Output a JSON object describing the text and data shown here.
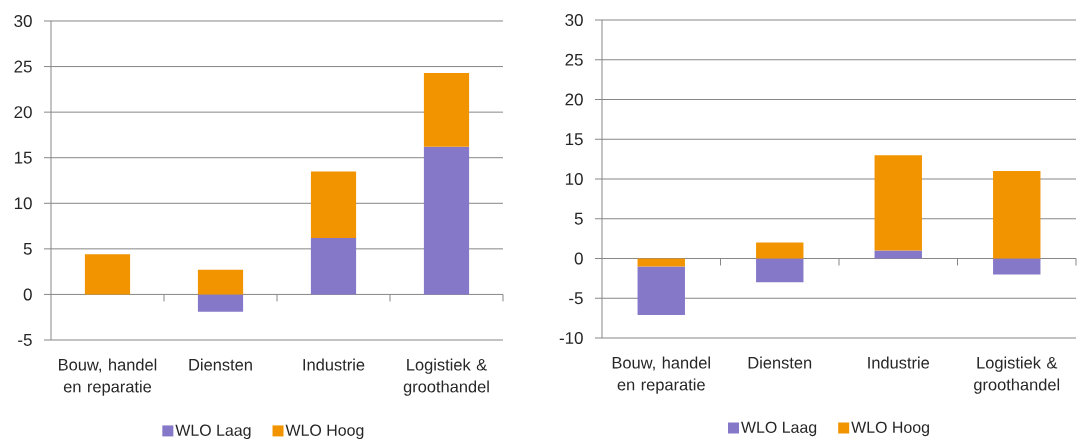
{
  "chart_data": [
    {
      "type": "bar",
      "stacked": true,
      "categories": [
        "Bouw, handel en reparatie",
        "Diensten",
        "Industrie",
        "Logistiek & groothandel"
      ],
      "series": [
        {
          "name": "WLO Laag",
          "color": "#8678c8",
          "values": [
            null,
            -1.9,
            6.2,
            16.2
          ]
        },
        {
          "name": "WLO Hoog",
          "color": "#f29400",
          "values": [
            4.4,
            2.7,
            7.3,
            8.1
          ]
        }
      ],
      "ylim": [
        -5,
        30
      ],
      "yticks": [
        -5,
        0,
        5,
        10,
        15,
        20,
        25,
        30
      ],
      "grid": "y",
      "legend": "bottom"
    },
    {
      "type": "bar",
      "categories": [
        "Bouw, handel en reparatie",
        "Diensten",
        "Industrie",
        "Logistiek & groothandel"
      ],
      "series": [
        {
          "name": "WLO Laag",
          "color": "#8678c8",
          "values": [
            -6.1,
            -3.0,
            1.0,
            -2.0
          ],
          "base": [
            -1.0,
            0,
            0,
            0
          ]
        },
        {
          "name": "WLO Hoog",
          "color": "#f29400",
          "values": [
            -1.0,
            2.0,
            12.0,
            11.0
          ],
          "base": [
            0,
            0,
            1.0,
            0
          ]
        }
      ],
      "ylim": [
        -10,
        30
      ],
      "yticks": [
        -10,
        -5,
        0,
        5,
        10,
        15,
        20,
        25,
        30
      ],
      "grid": "y",
      "legend": "bottom"
    }
  ]
}
